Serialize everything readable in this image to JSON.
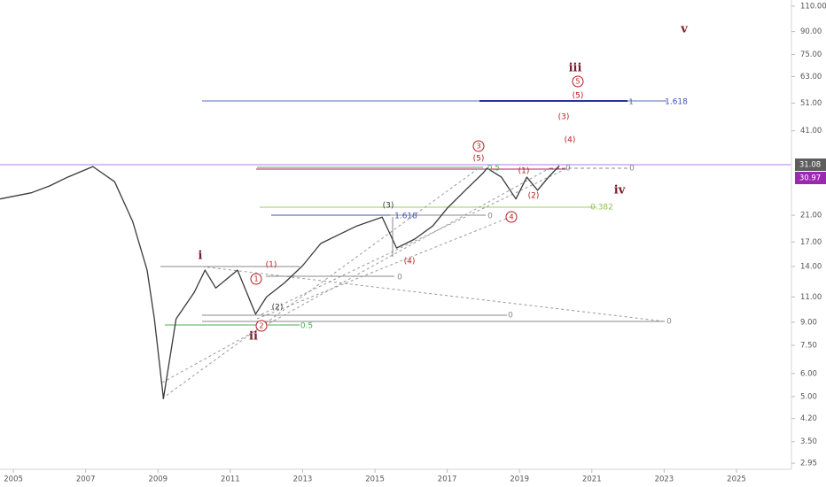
{
  "chart_data": {
    "type": "line",
    "log_scale": true,
    "x": [
      2004.63,
      2005.5,
      2006,
      2006.5,
      2007.2,
      2007.8,
      2008.3,
      2008.7,
      2008.9,
      2009.15,
      2009.5,
      2010,
      2010.3,
      2010.6,
      2011.2,
      2011.7,
      2012,
      2012.5,
      2013,
      2013.5,
      2014,
      2014.5,
      2015.2,
      2015.6,
      2016.1,
      2016.6,
      2017,
      2017.5,
      2018,
      2018.1,
      2018.5,
      2018.9,
      2019.2,
      2019.5,
      2019.8,
      2020.1
    ],
    "series": [
      {
        "color": "#3a3a3a",
        "values": [
          23.9,
          25.1,
          26.5,
          28.4,
          30.9,
          27.4,
          20.0,
          13.6,
          9.25,
          4.92,
          9.25,
          11.4,
          13.6,
          11.8,
          13.6,
          9.6,
          11.0,
          12.3,
          14.1,
          16.8,
          18.0,
          19.3,
          20.7,
          16.2,
          17.4,
          19.3,
          22.2,
          25.6,
          29.4,
          30.5,
          28.4,
          23.9,
          28.4,
          25.6,
          28.4,
          31.08
        ]
      }
    ],
    "xlim": [
      2004.63,
      2026.52
    ],
    "xticks": [
      2005,
      2007,
      2009,
      2011,
      2013,
      2015,
      2017,
      2019,
      2021,
      2023,
      2025
    ],
    "ylim": [
      2.81,
      115.5
    ],
    "yticks": [
      {
        "value": 110,
        "label": "110.00"
      },
      {
        "value": 90,
        "label": "90.00"
      },
      {
        "value": 75,
        "label": "75.00"
      },
      {
        "value": 63,
        "label": "63.00"
      },
      {
        "value": 51,
        "label": "51.00"
      },
      {
        "value": 41,
        "label": "41.00"
      },
      {
        "value": 21,
        "label": "21.00"
      },
      {
        "value": 17,
        "label": "17.00"
      },
      {
        "value": 14,
        "label": "14.00"
      },
      {
        "value": 11,
        "label": "11.00"
      },
      {
        "value": 9,
        "label": "9.00"
      },
      {
        "value": 7.5,
        "label": "7.50"
      },
      {
        "value": 6,
        "label": "6.00"
      },
      {
        "value": 5,
        "label": "5.00"
      },
      {
        "value": 4.2,
        "label": "4.20"
      },
      {
        "value": 3.5,
        "label": "3.50"
      },
      {
        "value": 2.95,
        "label": "2.95"
      }
    ],
    "price_badges": [
      "31.08",
      "30.97"
    ],
    "annotations": [
      "i",
      "ii",
      "iii",
      "iv",
      "v",
      "1",
      "2",
      "3",
      "4",
      "5",
      "(1)",
      "(2)",
      "(3)",
      "(4)",
      "(5)",
      "(1)",
      "(2)",
      "(3)",
      "(4)",
      "(5)",
      "0.5",
      "0.382",
      "1.618",
      "1.618",
      "0.5",
      "0",
      "0",
      "0",
      "0",
      "0",
      "0",
      "1"
    ]
  }
}
